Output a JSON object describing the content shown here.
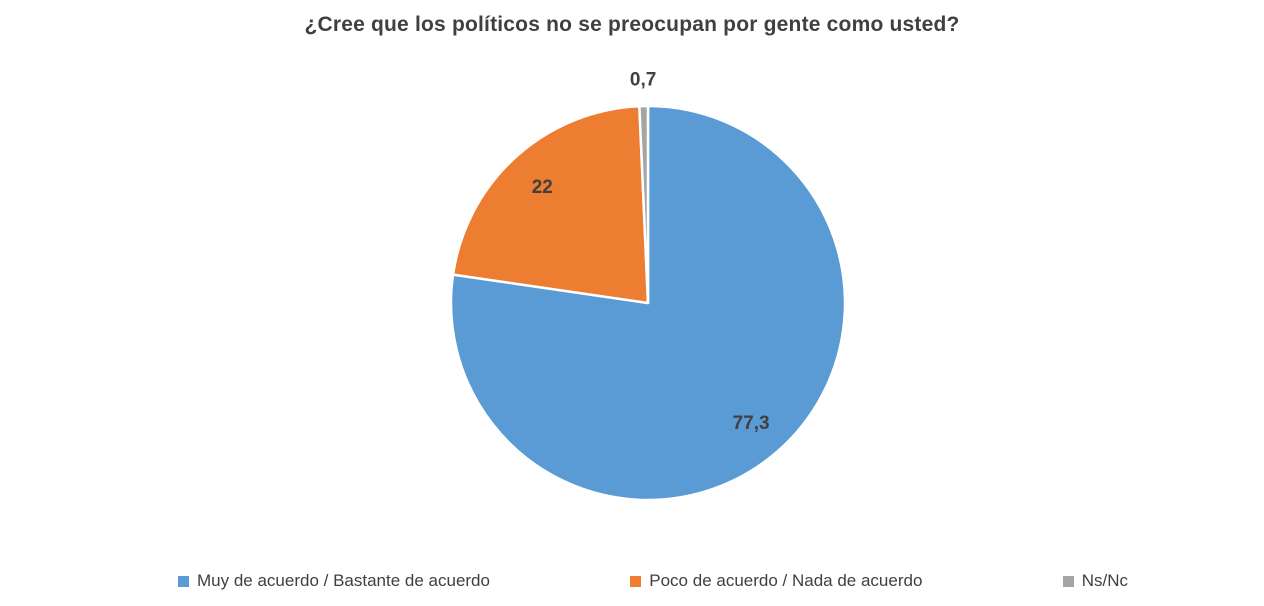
{
  "chart_data": {
    "type": "pie",
    "title": "¿Cree que los políticos no se preocupan por gente como usted?",
    "start_angle_deg": 0,
    "direction": "clockwise",
    "legend_position": "bottom",
    "data_labels": true,
    "label_color": "#404040",
    "slices": [
      {
        "label": "Muy de acuerdo / Bastante de acuerdo",
        "value": 77.3,
        "display": "77,3",
        "color": "#5B9BD5"
      },
      {
        "label": "Poco de acuerdo / Nada de acuerdo",
        "value": 22,
        "display": "22",
        "color": "#ED7D31"
      },
      {
        "label": "Ns/Nc",
        "value": 0.7,
        "display": "0,7",
        "color": "#A5A5A5"
      }
    ]
  }
}
